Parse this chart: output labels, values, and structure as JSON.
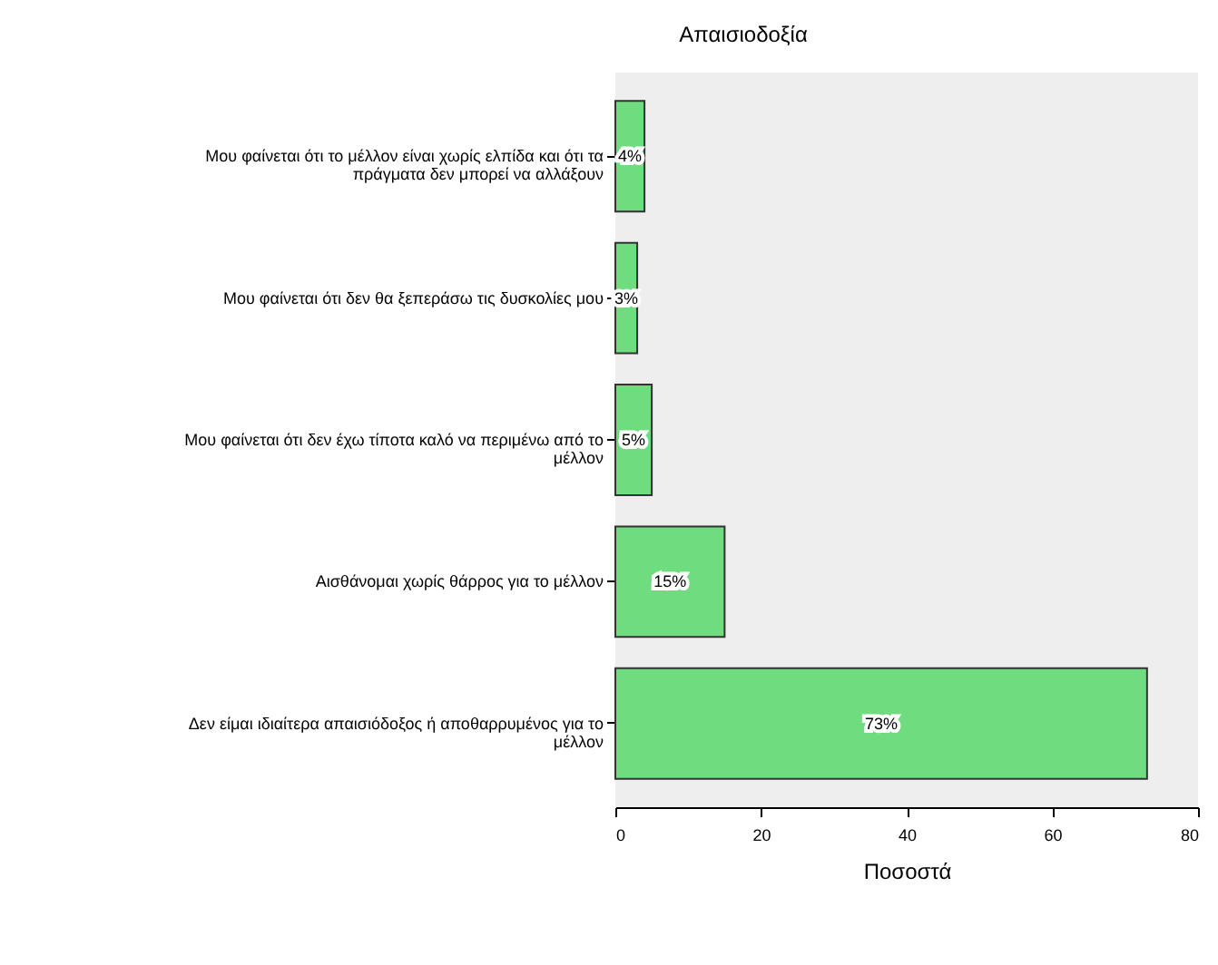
{
  "chart_data": {
    "type": "bar",
    "orientation": "horizontal",
    "title": "Απαισιοδοξία",
    "xlabel": "Ποσοστά",
    "categories": [
      "Μου φαίνεται ότι το μέλλον είναι χωρίς ελπίδα και ότι τα πράγματα δεν μπορεί να αλλάξουν",
      "Μου φαίνεται ότι δεν θα ξεπεράσω τις δυσκολίες μου",
      "Μου φαίνεται ότι δεν έχω τίποτα καλό να περιμένω από το μέλλον",
      "Αισθάνομαι χωρίς θάρρος για το μέλλον",
      "Δεν είμαι ιδιαίτερα απαισιόδοξος ή αποθαρρυμένος για το μέλλον"
    ],
    "values": [
      4,
      3,
      5,
      15,
      73
    ],
    "value_labels": [
      "4%",
      "3%",
      "5%",
      "15%",
      "73%"
    ],
    "color": "#70dc80",
    "xlim": [
      0,
      80
    ],
    "xticks": [
      0,
      20,
      40,
      60,
      80
    ],
    "grid": false
  }
}
